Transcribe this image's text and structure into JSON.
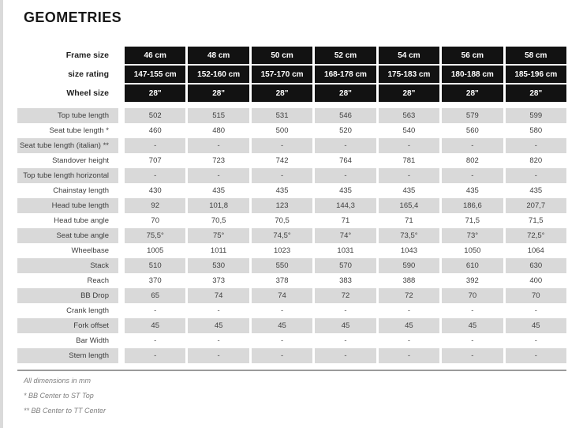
{
  "title": "GEOMETRIES",
  "table": {
    "header_rows": [
      {
        "label": "Frame size",
        "values": [
          "46 cm",
          "48 cm",
          "50 cm",
          "52 cm",
          "54 cm",
          "56 cm",
          "58 cm"
        ]
      },
      {
        "label": "size rating",
        "values": [
          "147-155 cm",
          "152-160 cm",
          "157-170 cm",
          "168-178 cm",
          "175-183 cm",
          "180-188 cm",
          "185-196 cm"
        ]
      },
      {
        "label": "Wheel size",
        "values": [
          "28\"",
          "28\"",
          "28\"",
          "28\"",
          "28\"",
          "28\"",
          "28\""
        ]
      }
    ],
    "rows": [
      {
        "label": "Top tube length",
        "values": [
          "502",
          "515",
          "531",
          "546",
          "563",
          "579",
          "599"
        ]
      },
      {
        "label": "Seat tube length *",
        "values": [
          "460",
          "480",
          "500",
          "520",
          "540",
          "560",
          "580"
        ]
      },
      {
        "label": "Seat tube length (italian) **",
        "values": [
          "-",
          "-",
          "-",
          "-",
          "-",
          "-",
          "-"
        ]
      },
      {
        "label": "Standover height",
        "values": [
          "707",
          "723",
          "742",
          "764",
          "781",
          "802",
          "820"
        ]
      },
      {
        "label": "Top tube length horizontal",
        "values": [
          "-",
          "-",
          "-",
          "-",
          "-",
          "-",
          "-"
        ]
      },
      {
        "label": "Chainstay length",
        "values": [
          "430",
          "435",
          "435",
          "435",
          "435",
          "435",
          "435"
        ]
      },
      {
        "label": "Head tube length",
        "values": [
          "92",
          "101,8",
          "123",
          "144,3",
          "165,4",
          "186,6",
          "207,7"
        ]
      },
      {
        "label": "Head tube angle",
        "values": [
          "70",
          "70,5",
          "70,5",
          "71",
          "71",
          "71,5",
          "71,5"
        ]
      },
      {
        "label": "Seat tube angle",
        "values": [
          "75,5°",
          "75°",
          "74,5°",
          "74°",
          "73,5°",
          "73°",
          "72,5°"
        ]
      },
      {
        "label": "Wheelbase",
        "values": [
          "1005",
          "1011",
          "1023",
          "1031",
          "1043",
          "1050",
          "1064"
        ]
      },
      {
        "label": "Stack",
        "values": [
          "510",
          "530",
          "550",
          "570",
          "590",
          "610",
          "630"
        ]
      },
      {
        "label": "Reach",
        "values": [
          "370",
          "373",
          "378",
          "383",
          "388",
          "392",
          "400"
        ]
      },
      {
        "label": "BB Drop",
        "values": [
          "65",
          "74",
          "74",
          "72",
          "72",
          "70",
          "70"
        ]
      },
      {
        "label": "Crank length",
        "values": [
          "-",
          "-",
          "-",
          "-",
          "-",
          "-",
          "-"
        ]
      },
      {
        "label": "Fork offset",
        "values": [
          "45",
          "45",
          "45",
          "45",
          "45",
          "45",
          "45"
        ]
      },
      {
        "label": "Bar Width",
        "values": [
          "-",
          "-",
          "-",
          "-",
          "-",
          "-",
          "-"
        ]
      },
      {
        "label": "Stem length",
        "values": [
          "-",
          "-",
          "-",
          "-",
          "-",
          "-",
          "-"
        ]
      }
    ]
  },
  "footnotes": [
    "All dimensions in mm",
    "* BB Center to ST Top",
    "** BB Center to TT Center"
  ],
  "colors": {
    "header-bg": "#121212",
    "header-text": "#ffffff",
    "stripe-bg": "#d9d9d9",
    "label-text": "#3f3f3f",
    "value-text": "#404040",
    "title-text": "#171717",
    "note-text": "#7f7f7f",
    "rule": "#9b9b9b",
    "edge-strip": "#dadada"
  }
}
